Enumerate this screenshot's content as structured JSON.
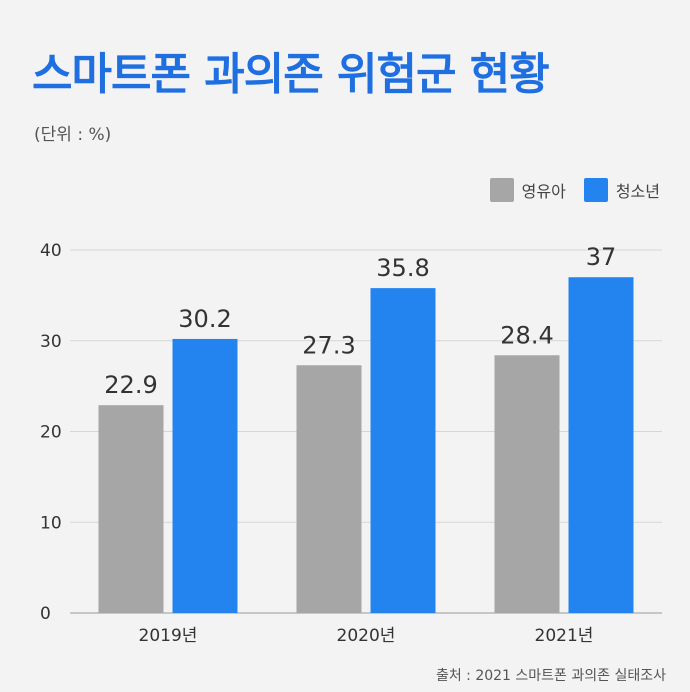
{
  "title": "스마트폰 과의존 위험군 현황",
  "unit_note": "(단위 : %)",
  "source": "출처 : 2021 스마트폰 과의존 실태조사",
  "chart_data": {
    "type": "bar",
    "categories": [
      "2019년",
      "2020년",
      "2021년"
    ],
    "series": [
      {
        "name": "영유아",
        "values": [
          22.9,
          27.3,
          28.4
        ],
        "color": "#a6a6a6"
      },
      {
        "name": "청소년",
        "values": [
          30.2,
          35.8,
          37
        ],
        "color": "#2384f0"
      }
    ],
    "ylim": [
      0,
      40
    ],
    "yticks": [
      0,
      10,
      20,
      30,
      40
    ],
    "grid": true,
    "legend": "top-right"
  }
}
